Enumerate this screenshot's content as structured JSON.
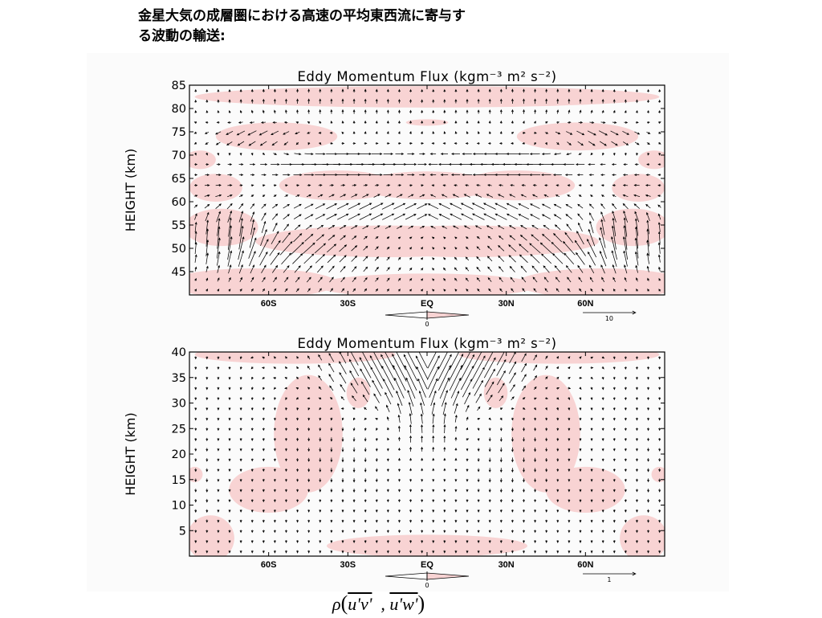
{
  "slide": {
    "title_line1": "金星大気の成層圏における高速の平均東西流に寄与す",
    "title_line2": "る波動の輸送:"
  },
  "formula": {
    "rho": "ρ",
    "term1": "u'v'",
    "separator": ",",
    "term2": "u'w'"
  },
  "colors": {
    "shading": "#f8d3d3",
    "arrow": "#000000",
    "frame": "#000000"
  },
  "chart_data": [
    {
      "type": "vector-field",
      "title": "Eddy Momentum Flux (kgm⁻³ m² s⁻²)",
      "ylabel": "HEIGHT (km)",
      "xlim": [
        -90,
        90
      ],
      "ylim": [
        40,
        85
      ],
      "yticks": [
        45,
        50,
        55,
        60,
        65,
        70,
        75,
        80,
        85
      ],
      "ytick_labels": [
        "45",
        "50",
        "55",
        "60",
        "65",
        "70",
        "75",
        "80",
        "85"
      ],
      "xticks": [
        -60,
        -30,
        0,
        30,
        60
      ],
      "xtick_labels": [
        "60S",
        "30S",
        "EQ",
        "30N",
        "60N"
      ],
      "contour_label": "0",
      "reference_vector_label": "10",
      "shading_meaning": "positive values shaded",
      "grid": false
    },
    {
      "type": "vector-field",
      "title": "Eddy Momentum Flux (kgm⁻³ m² s⁻²)",
      "ylabel": "HEIGHT (km)",
      "xlim": [
        -90,
        90
      ],
      "ylim": [
        0,
        40
      ],
      "yticks": [
        5,
        10,
        15,
        20,
        25,
        30,
        35,
        40
      ],
      "ytick_labels": [
        "5",
        "10",
        "15",
        "20",
        "25",
        "30",
        "35",
        "40"
      ],
      "xticks": [
        -60,
        -30,
        0,
        30,
        60
      ],
      "xtick_labels": [
        "60S",
        "30S",
        "EQ",
        "30N",
        "60N"
      ],
      "contour_label": "0",
      "reference_vector_label": "1",
      "shading_meaning": "positive values shaded",
      "grid": false
    }
  ]
}
